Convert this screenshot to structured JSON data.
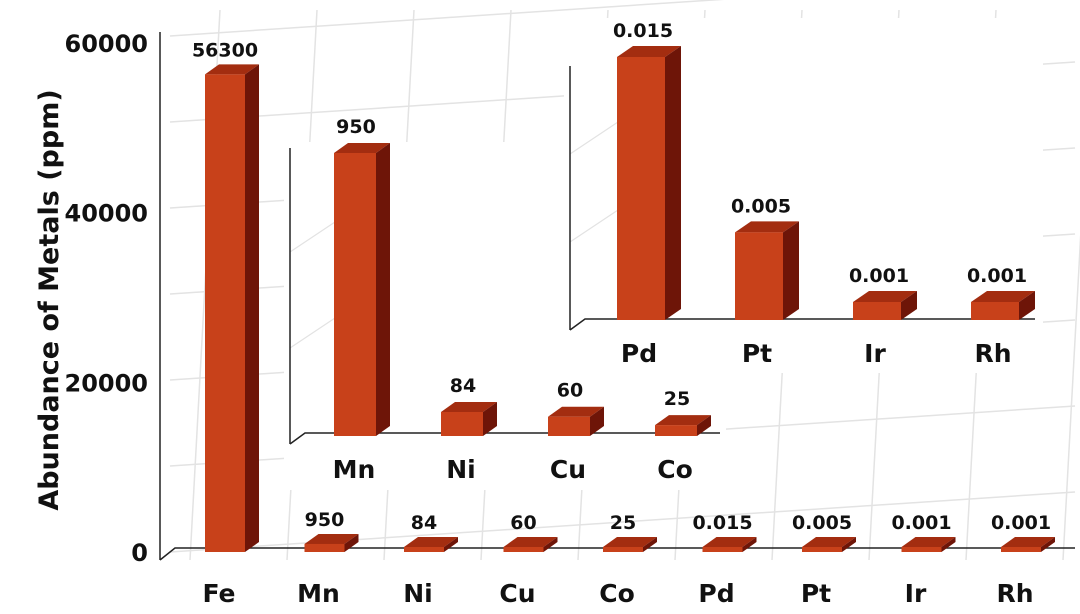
{
  "chart_data": [
    {
      "type": "bar",
      "categories": [
        "Fe",
        "Mn",
        "Ni",
        "Cu",
        "Co",
        "Pd",
        "Pt",
        "Ir",
        "Rh"
      ],
      "values": [
        56300,
        950,
        84,
        60,
        25,
        0.015,
        0.005,
        0.001,
        0.001
      ],
      "data_labels": [
        "56300",
        "950",
        "84",
        "60",
        "25",
        "0.015",
        "0.005",
        "0.001",
        "0.001"
      ],
      "ylabel": "Abundance of Metals (ppm)",
      "yticks": [
        "0",
        "20000",
        "40000",
        "60000"
      ],
      "ylim": [
        0,
        60000
      ],
      "grid": true
    },
    {
      "type": "bar",
      "categories": [
        "Mn",
        "Ni",
        "Cu",
        "Co"
      ],
      "values": [
        950,
        84,
        60,
        25
      ],
      "data_labels": [
        "950",
        "84",
        "60",
        "25"
      ]
    },
    {
      "type": "bar",
      "categories": [
        "Pd",
        "Pt",
        "Ir",
        "Rh"
      ],
      "values": [
        0.015,
        0.005,
        0.001,
        0.001
      ],
      "data_labels": [
        "0.015",
        "0.005",
        "0.001",
        "0.001"
      ]
    }
  ],
  "colors": {
    "bar_front": "#c8411a",
    "bar_side": "#6e1508",
    "bar_top": "#a32d10",
    "grid": "#e3e3e3",
    "axis": "#222222"
  }
}
